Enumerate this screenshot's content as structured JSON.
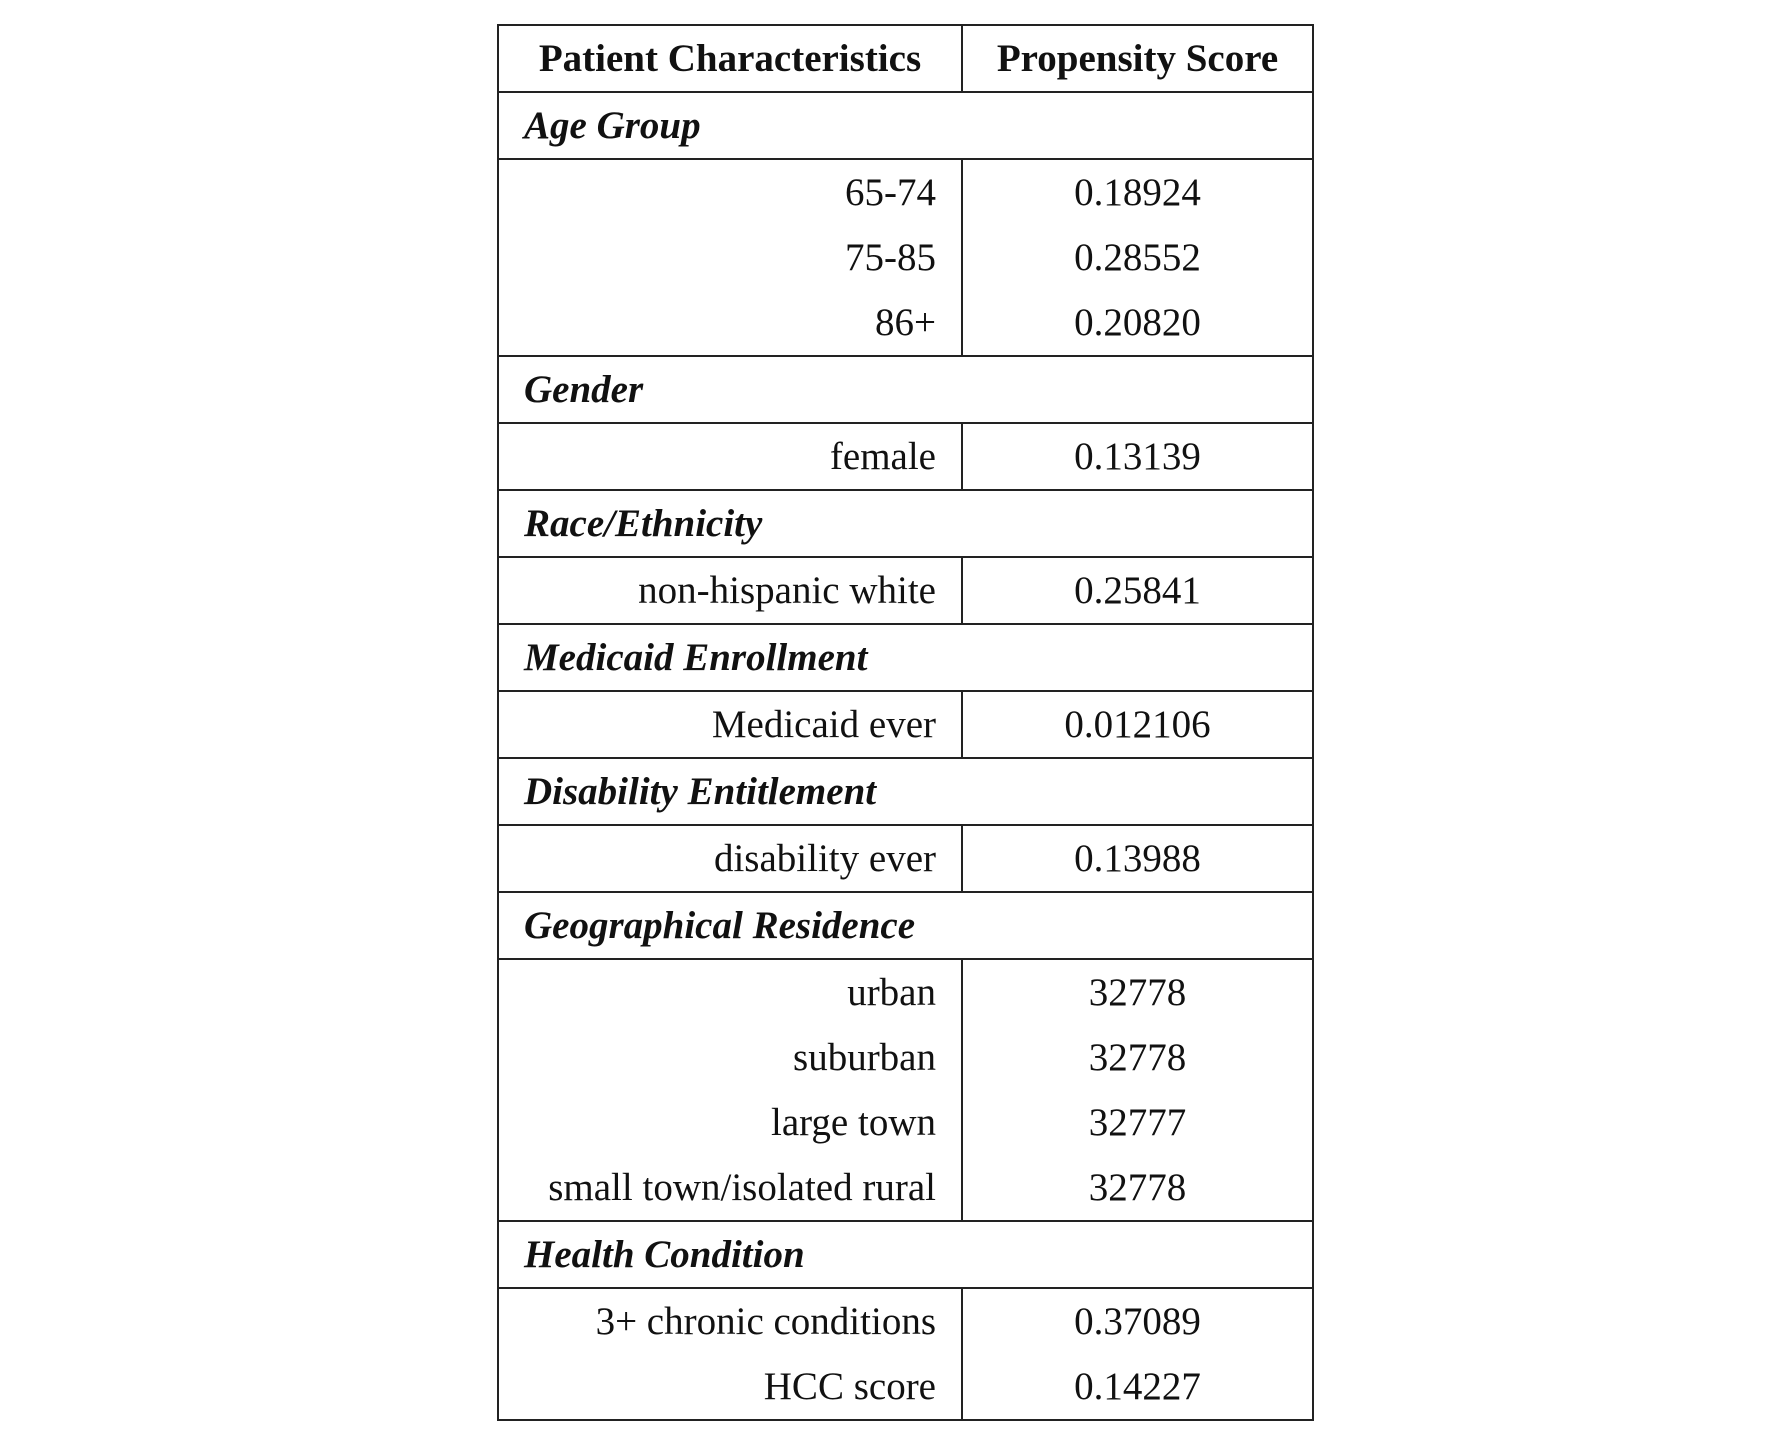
{
  "table": {
    "headers": [
      "Patient Characteristics",
      "Propensity Score"
    ],
    "sections": [
      {
        "title": "Age Group",
        "rows": [
          {
            "label": "65-74",
            "value": "0.18924"
          },
          {
            "label": "75-85",
            "value": "0.28552"
          },
          {
            "label": "86+",
            "value": "0.20820"
          }
        ]
      },
      {
        "title": "Gender",
        "rows": [
          {
            "label": "female",
            "value": "0.13139"
          }
        ]
      },
      {
        "title": "Race/Ethnicity",
        "rows": [
          {
            "label": "non-hispanic white",
            "value": "0.25841"
          }
        ]
      },
      {
        "title": "Medicaid Enrollment",
        "rows": [
          {
            "label": "Medicaid ever",
            "value": "0.012106"
          }
        ]
      },
      {
        "title": "Disability Entitlement",
        "rows": [
          {
            "label": "disability ever",
            "value": "0.13988"
          }
        ]
      },
      {
        "title": "Geographical Residence",
        "rows": [
          {
            "label": "urban",
            "value": "32778"
          },
          {
            "label": "suburban",
            "value": "32778"
          },
          {
            "label": "large town",
            "value": "32777"
          },
          {
            "label": "small town/isolated rural",
            "value": "32778"
          }
        ]
      },
      {
        "title": "Health Condition",
        "rows": [
          {
            "label": "3+ chronic conditions",
            "value": "0.37089"
          },
          {
            "label": "HCC score",
            "value": "0.14227"
          }
        ]
      }
    ]
  }
}
